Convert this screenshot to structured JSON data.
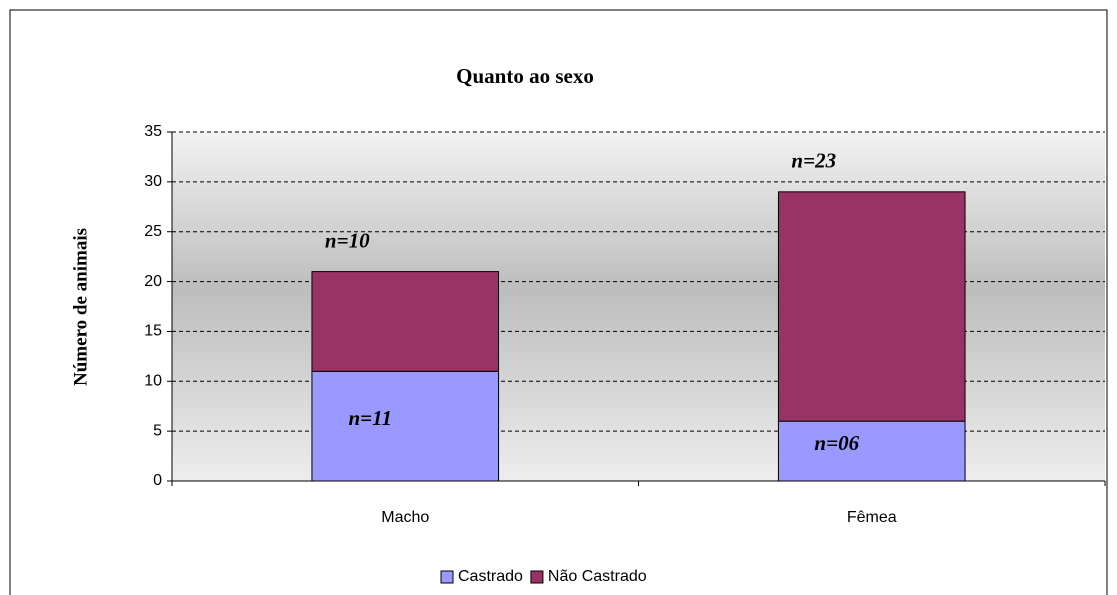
{
  "chart_data": {
    "type": "bar",
    "stacked": true,
    "title": "Quanto ao sexo",
    "y_label": "Número de animais",
    "categories": [
      "Macho",
      "Fêmea"
    ],
    "series": [
      {
        "name": "Castrado",
        "color": "#9999ff",
        "values": [
          11,
          6
        ],
        "value_labels": [
          "n=11",
          "n=06"
        ]
      },
      {
        "name": "Não Castrado",
        "color": "#993366",
        "values": [
          10,
          23
        ],
        "value_labels": [
          "n=10",
          "n=23"
        ]
      }
    ],
    "ylim": [
      0,
      35
    ],
    "yticks": [
      0,
      5,
      10,
      15,
      20,
      25,
      30,
      35
    ],
    "grid": true,
    "legend": "bottom"
  }
}
